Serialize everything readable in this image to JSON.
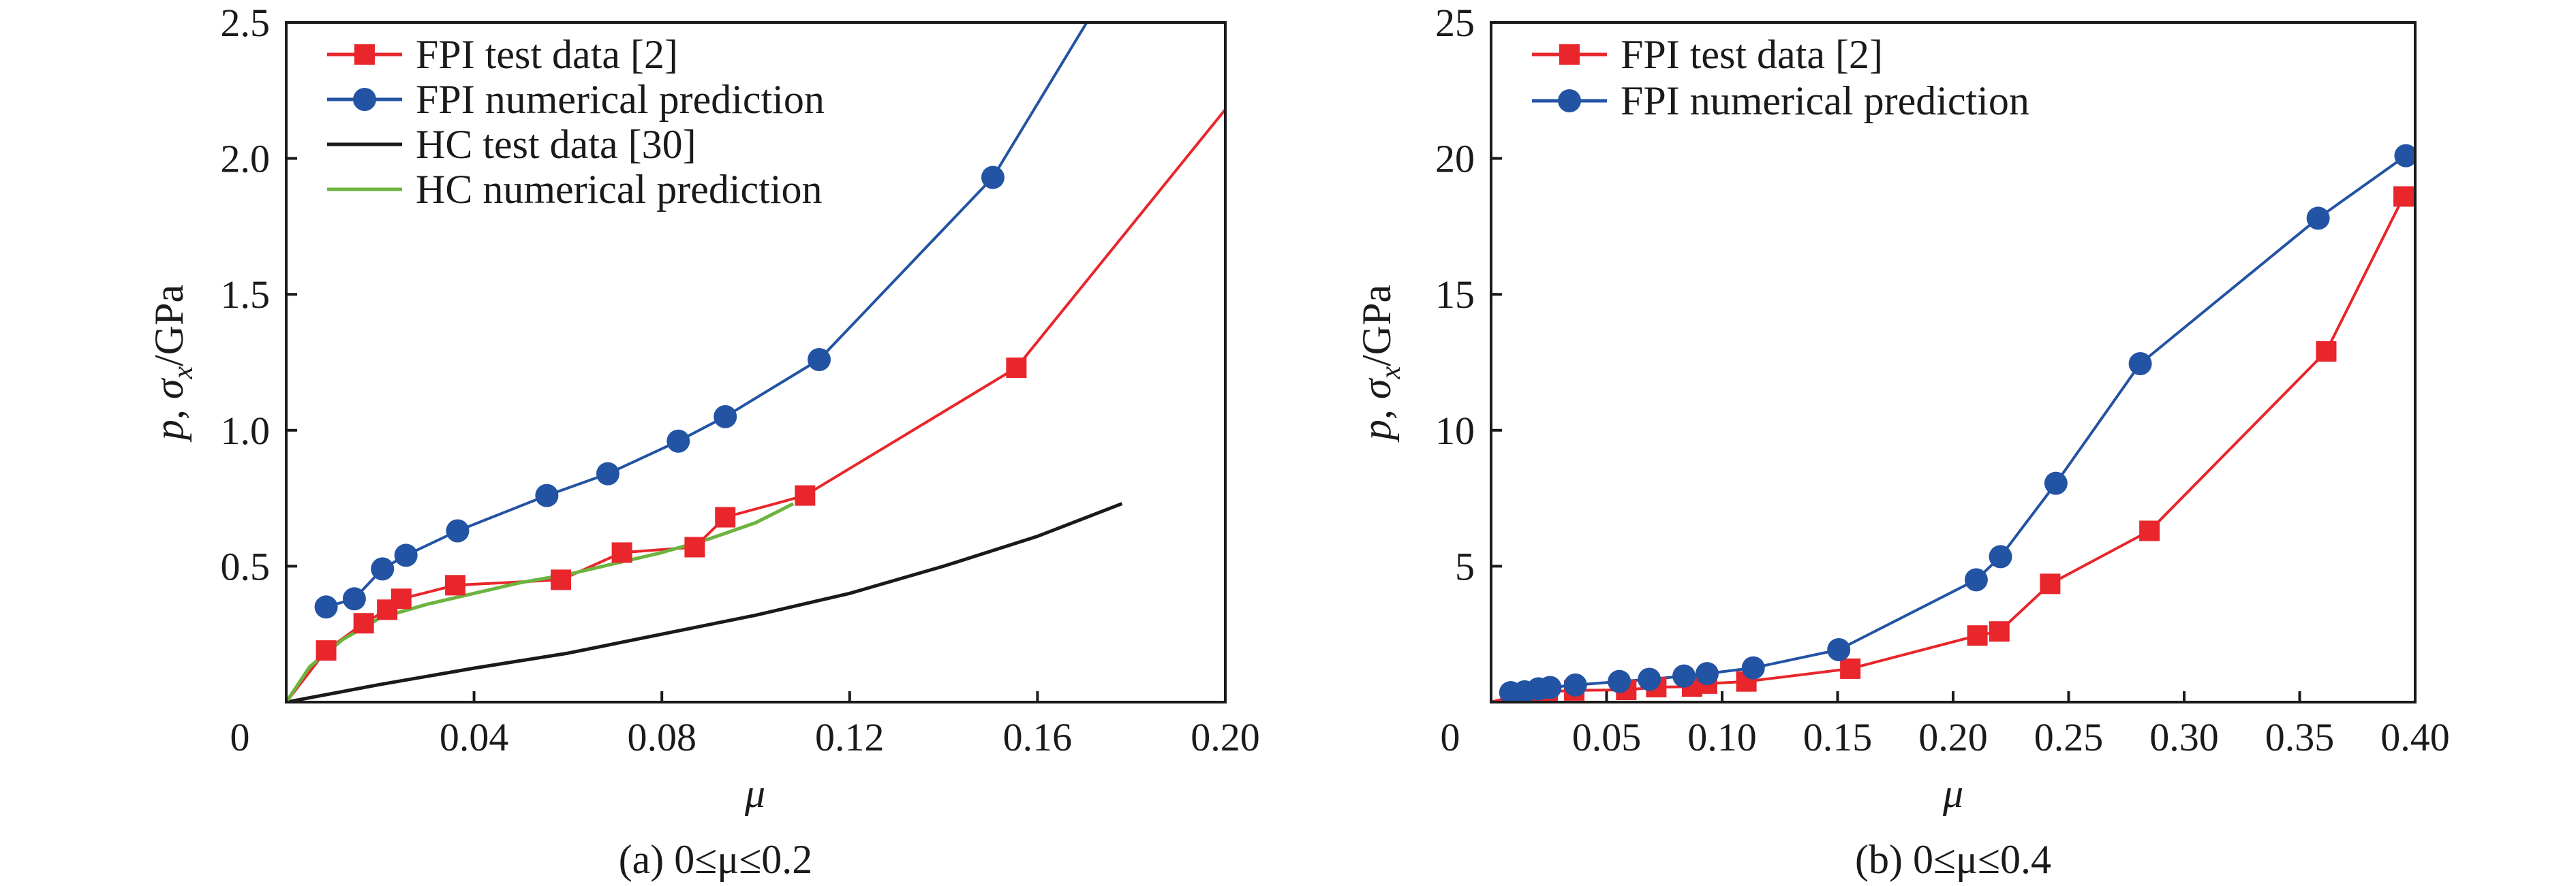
{
  "chart_data": [
    {
      "type": "line",
      "caption": "(a) 0≤μ≤0.2",
      "xlabel": "μ",
      "ylabel_parts": {
        "p": "p",
        "sep": ", ",
        "sigma": "σ",
        "sub": "x",
        "unit": "/GPa"
      },
      "xlim": [
        0,
        0.2
      ],
      "ylim": [
        0,
        2.5
      ],
      "x_ticks": [
        0.04,
        0.08,
        0.12,
        0.16,
        0.2
      ],
      "x_tick_labels": [
        "0.04",
        "0.08",
        "0.12",
        "0.16",
        "0.20"
      ],
      "y_ticks": [
        0.5,
        1.0,
        1.5,
        2.0,
        2.5
      ],
      "y_tick_labels": [
        "0.5",
        "1.0",
        "1.5",
        "2.0",
        "2.5"
      ],
      "origin_label": "0",
      "grid": false,
      "legend_position": "top-left",
      "series": [
        {
          "name": "FPI test data [2]",
          "color": "#e8262b",
          "marker": "square",
          "x": [
            0,
            0.0085,
            0.0165,
            0.0215,
            0.0245,
            0.036,
            0.0585,
            0.0715,
            0.087,
            0.0935,
            0.1105,
            0.1555,
            0.2
          ],
          "y": [
            0,
            0.19,
            0.29,
            0.34,
            0.38,
            0.43,
            0.45,
            0.55,
            0.57,
            0.68,
            0.76,
            1.23,
            2.18
          ],
          "markers": [
            false,
            true,
            true,
            true,
            true,
            true,
            true,
            true,
            true,
            true,
            true,
            true,
            false
          ]
        },
        {
          "name": "FPI numerical prediction",
          "color": "#2353a3",
          "marker": "circle",
          "x": [
            0.0085,
            0.0145,
            0.0205,
            0.0255,
            0.0365,
            0.0555,
            0.0685,
            0.0835,
            0.0935,
            0.1135,
            0.1505,
            0.1705
          ],
          "y": [
            0.35,
            0.38,
            0.49,
            0.54,
            0.63,
            0.76,
            0.84,
            0.96,
            1.05,
            1.26,
            1.93,
            2.5
          ],
          "markers": [
            true,
            true,
            true,
            true,
            true,
            true,
            true,
            true,
            true,
            true,
            true,
            false
          ]
        },
        {
          "name": "HC test data [30]",
          "color": "#1a1a1a",
          "marker": "none",
          "x": [
            0,
            0.02,
            0.04,
            0.06,
            0.08,
            0.1,
            0.12,
            0.14,
            0.16,
            0.178
          ],
          "y": [
            0,
            0.065,
            0.125,
            0.18,
            0.25,
            0.32,
            0.4,
            0.5,
            0.61,
            0.73
          ]
        },
        {
          "name": "HC numerical prediction",
          "color": "#6db33f",
          "marker": "none",
          "x": [
            0,
            0.005,
            0.012,
            0.02,
            0.03,
            0.04,
            0.05,
            0.06,
            0.07,
            0.08,
            0.09,
            0.1,
            0.108
          ],
          "y": [
            0,
            0.13,
            0.23,
            0.31,
            0.36,
            0.4,
            0.44,
            0.47,
            0.51,
            0.55,
            0.6,
            0.66,
            0.73
          ]
        }
      ]
    },
    {
      "type": "line",
      "caption": "(b) 0≤μ≤0.4",
      "xlabel": "μ",
      "ylabel_parts": {
        "p": "p",
        "sep": ", ",
        "sigma": "σ",
        "sub": "x",
        "unit": "/GPa"
      },
      "xlim": [
        0,
        0.4
      ],
      "ylim": [
        0,
        25
      ],
      "x_ticks": [
        0.05,
        0.1,
        0.15,
        0.2,
        0.25,
        0.3,
        0.35,
        0.4
      ],
      "x_tick_labels": [
        "0.05",
        "0.10",
        "0.15",
        "0.20",
        "0.25",
        "0.30",
        "0.35",
        "0.40"
      ],
      "y_ticks": [
        5,
        10,
        15,
        20,
        25
      ],
      "y_tick_labels": [
        "5",
        "10",
        "15",
        "20",
        "25"
      ],
      "origin_label": "0",
      "grid": false,
      "legend_position": "top-left",
      "series": [
        {
          "name": "FPI test data [2]",
          "color": "#e8262b",
          "marker": "square",
          "x": [
            0,
            0.0085,
            0.0165,
            0.0215,
            0.0245,
            0.036,
            0.0585,
            0.0715,
            0.087,
            0.0935,
            0.1105,
            0.1555,
            0.2105,
            0.22,
            0.242,
            0.285,
            0.3615,
            0.395
          ],
          "y": [
            0,
            0.19,
            0.29,
            0.34,
            0.38,
            0.43,
            0.45,
            0.55,
            0.57,
            0.68,
            0.76,
            1.23,
            2.45,
            2.6,
            4.35,
            6.3,
            12.9,
            18.6
          ],
          "markers": [
            false,
            true,
            true,
            true,
            true,
            true,
            true,
            true,
            true,
            true,
            true,
            true,
            true,
            true,
            true,
            true,
            true,
            true
          ]
        },
        {
          "name": "FPI numerical prediction",
          "color": "#2353a3",
          "marker": "circle",
          "x": [
            0.0085,
            0.0145,
            0.0205,
            0.0255,
            0.0365,
            0.0555,
            0.0685,
            0.0835,
            0.0935,
            0.1135,
            0.1505,
            0.21,
            0.2205,
            0.2445,
            0.281,
            0.358,
            0.396
          ],
          "y": [
            0.35,
            0.38,
            0.49,
            0.54,
            0.63,
            0.76,
            0.84,
            0.96,
            1.05,
            1.26,
            1.93,
            4.5,
            5.35,
            8.05,
            12.45,
            17.8,
            20.1
          ],
          "markers": [
            true,
            true,
            true,
            true,
            true,
            true,
            true,
            true,
            true,
            true,
            true,
            true,
            true,
            true,
            true,
            true,
            true
          ]
        }
      ]
    }
  ]
}
